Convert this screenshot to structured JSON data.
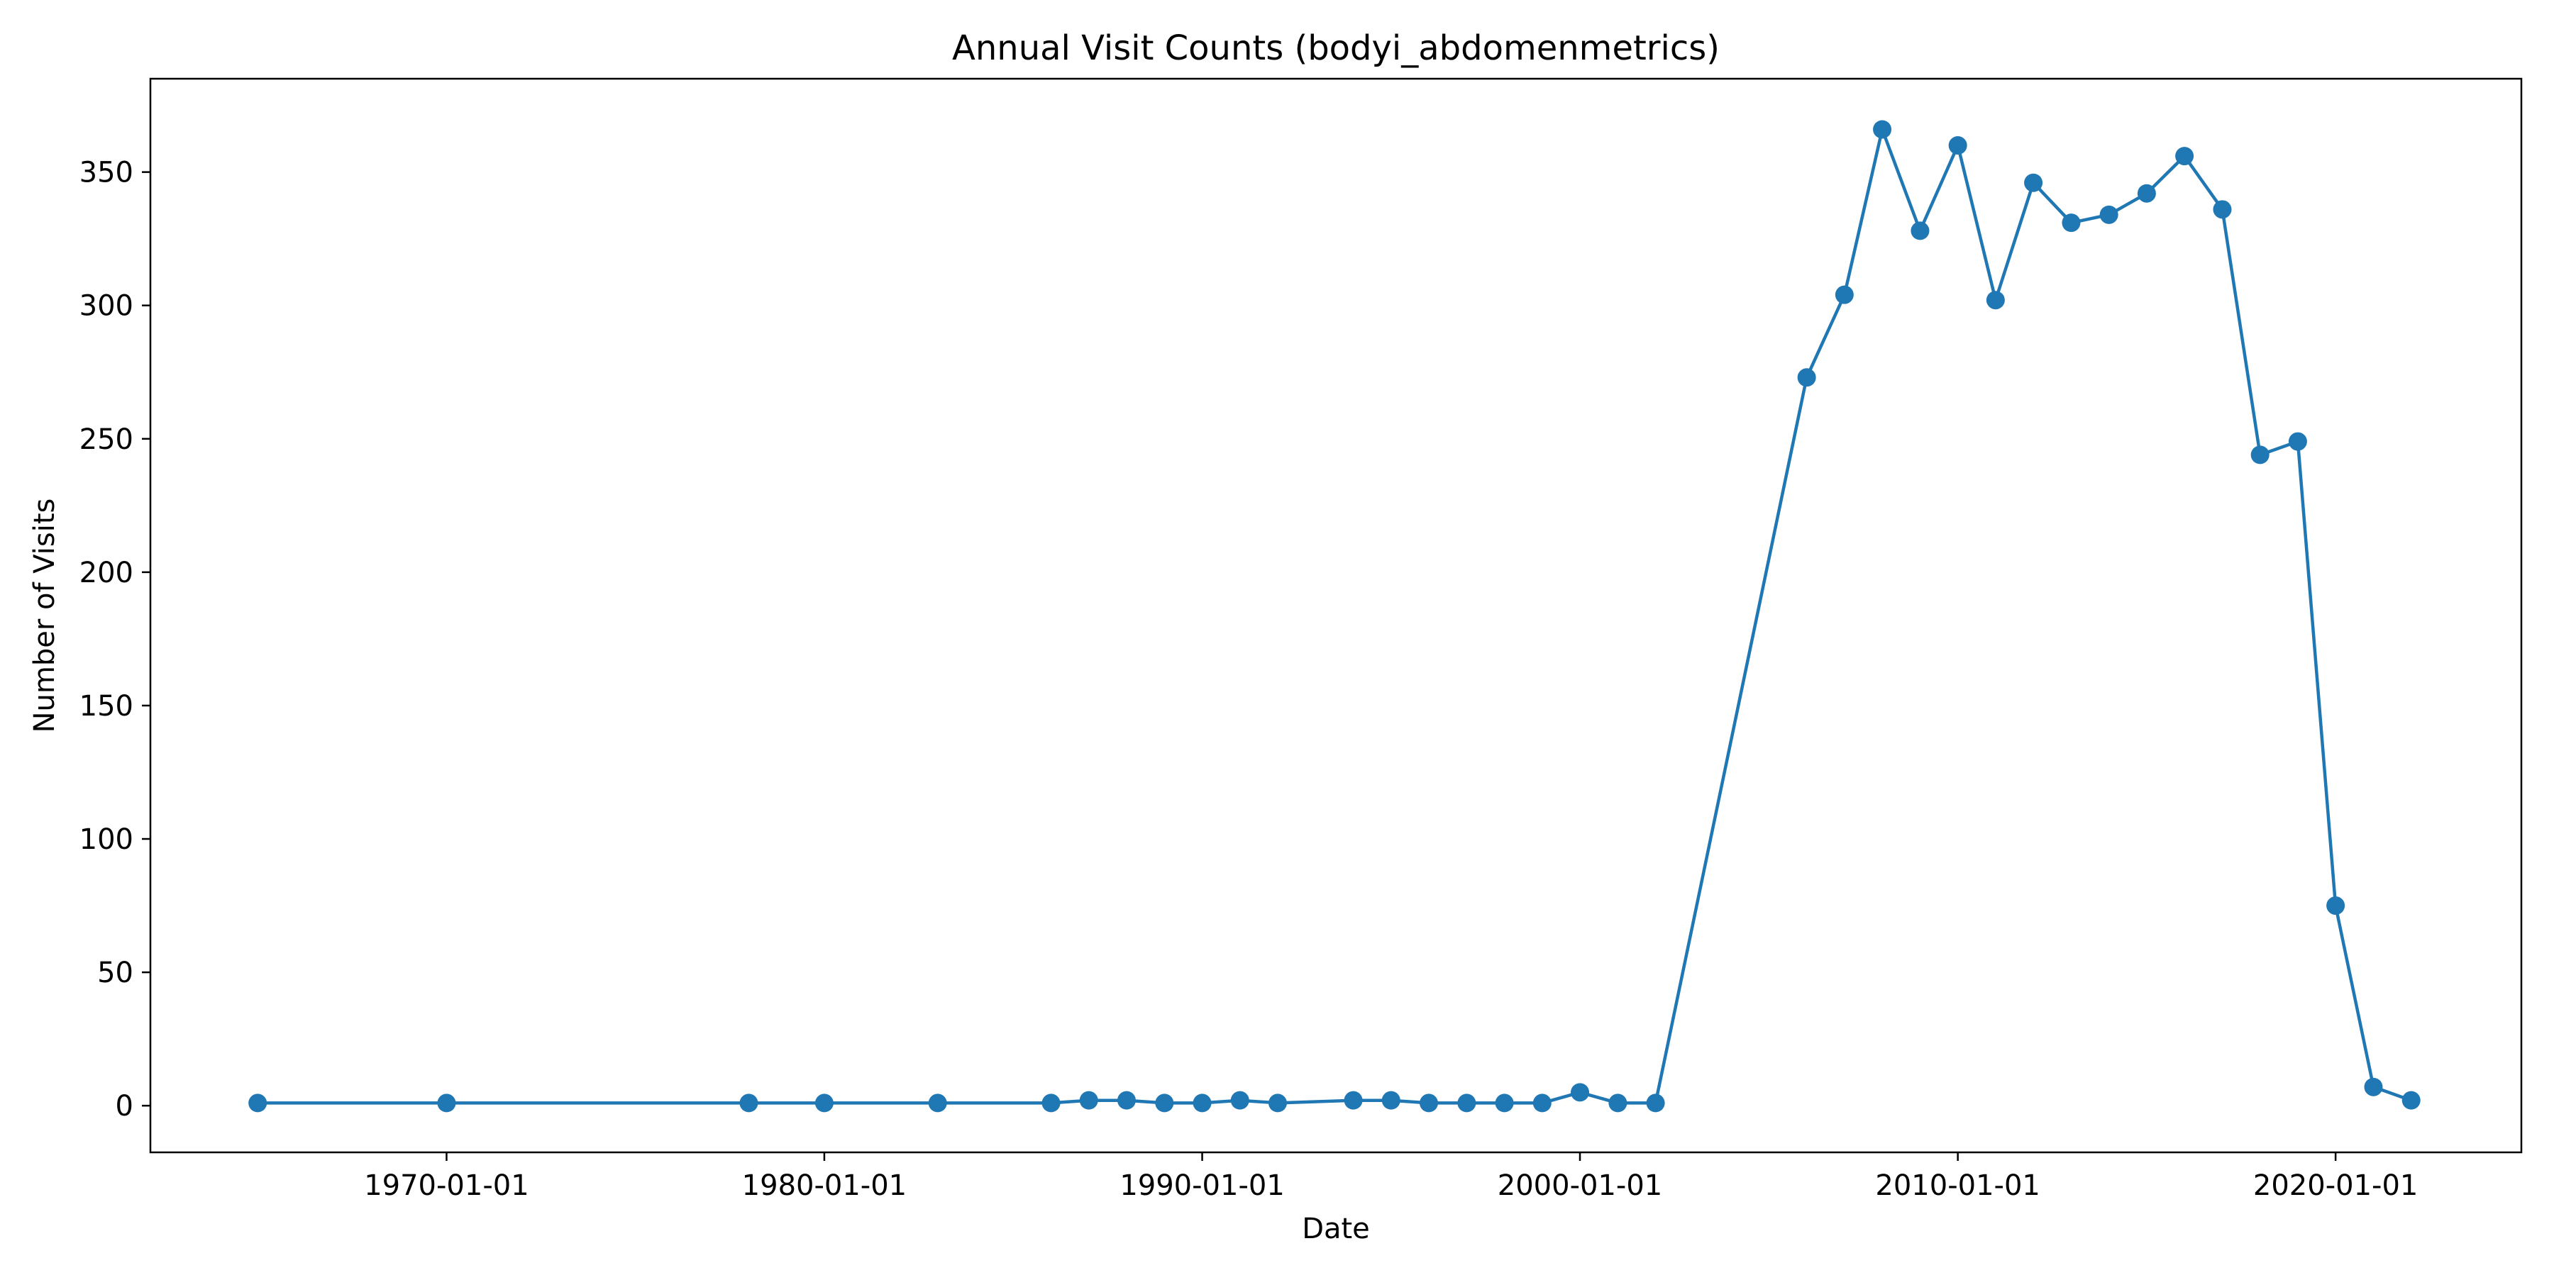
{
  "chart_data": {
    "type": "line",
    "title": "Annual Visit Counts (bodyi_abdomenmetrics)",
    "xlabel": "Date",
    "ylabel": "Number of Visits",
    "x_ticks": [
      "1970-01-01",
      "1980-01-01",
      "1990-01-01",
      "2000-01-01",
      "2010-01-01",
      "2020-01-01"
    ],
    "y_ticks": [
      0,
      50,
      100,
      150,
      200,
      250,
      300,
      350
    ],
    "xlim": [
      "1962-03-01",
      "2024-12-01"
    ],
    "ylim": [
      -17.5,
      385
    ],
    "grid": false,
    "series": [
      {
        "color": "#1f77b4",
        "points": [
          {
            "x": "1965-01-01",
            "y": 1
          },
          {
            "x": "1970-01-01",
            "y": 1
          },
          {
            "x": "1978-01-01",
            "y": 1
          },
          {
            "x": "1980-01-01",
            "y": 1
          },
          {
            "x": "1983-01-01",
            "y": 1
          },
          {
            "x": "1986-01-01",
            "y": 1
          },
          {
            "x": "1987-01-01",
            "y": 2
          },
          {
            "x": "1988-01-01",
            "y": 2
          },
          {
            "x": "1989-01-01",
            "y": 1
          },
          {
            "x": "1990-01-01",
            "y": 1
          },
          {
            "x": "1991-01-01",
            "y": 2
          },
          {
            "x": "1992-01-01",
            "y": 1
          },
          {
            "x": "1994-01-01",
            "y": 2
          },
          {
            "x": "1995-01-01",
            "y": 2
          },
          {
            "x": "1996-01-01",
            "y": 1
          },
          {
            "x": "1997-01-01",
            "y": 1
          },
          {
            "x": "1998-01-01",
            "y": 1
          },
          {
            "x": "1999-01-01",
            "y": 1
          },
          {
            "x": "2000-01-01",
            "y": 5
          },
          {
            "x": "2001-01-01",
            "y": 1
          },
          {
            "x": "2002-01-01",
            "y": 1
          },
          {
            "x": "2006-01-01",
            "y": 273
          },
          {
            "x": "2007-01-01",
            "y": 304
          },
          {
            "x": "2008-01-01",
            "y": 366
          },
          {
            "x": "2009-01-01",
            "y": 328
          },
          {
            "x": "2010-01-01",
            "y": 360
          },
          {
            "x": "2011-01-01",
            "y": 302
          },
          {
            "x": "2012-01-01",
            "y": 346
          },
          {
            "x": "2013-01-01",
            "y": 331
          },
          {
            "x": "2014-01-01",
            "y": 334
          },
          {
            "x": "2015-01-01",
            "y": 342
          },
          {
            "x": "2016-01-01",
            "y": 356
          },
          {
            "x": "2017-01-01",
            "y": 336
          },
          {
            "x": "2018-01-01",
            "y": 244
          },
          {
            "x": "2019-01-01",
            "y": 249
          },
          {
            "x": "2020-01-01",
            "y": 75
          },
          {
            "x": "2021-01-01",
            "y": 7
          },
          {
            "x": "2022-01-01",
            "y": 2
          }
        ]
      }
    ]
  }
}
